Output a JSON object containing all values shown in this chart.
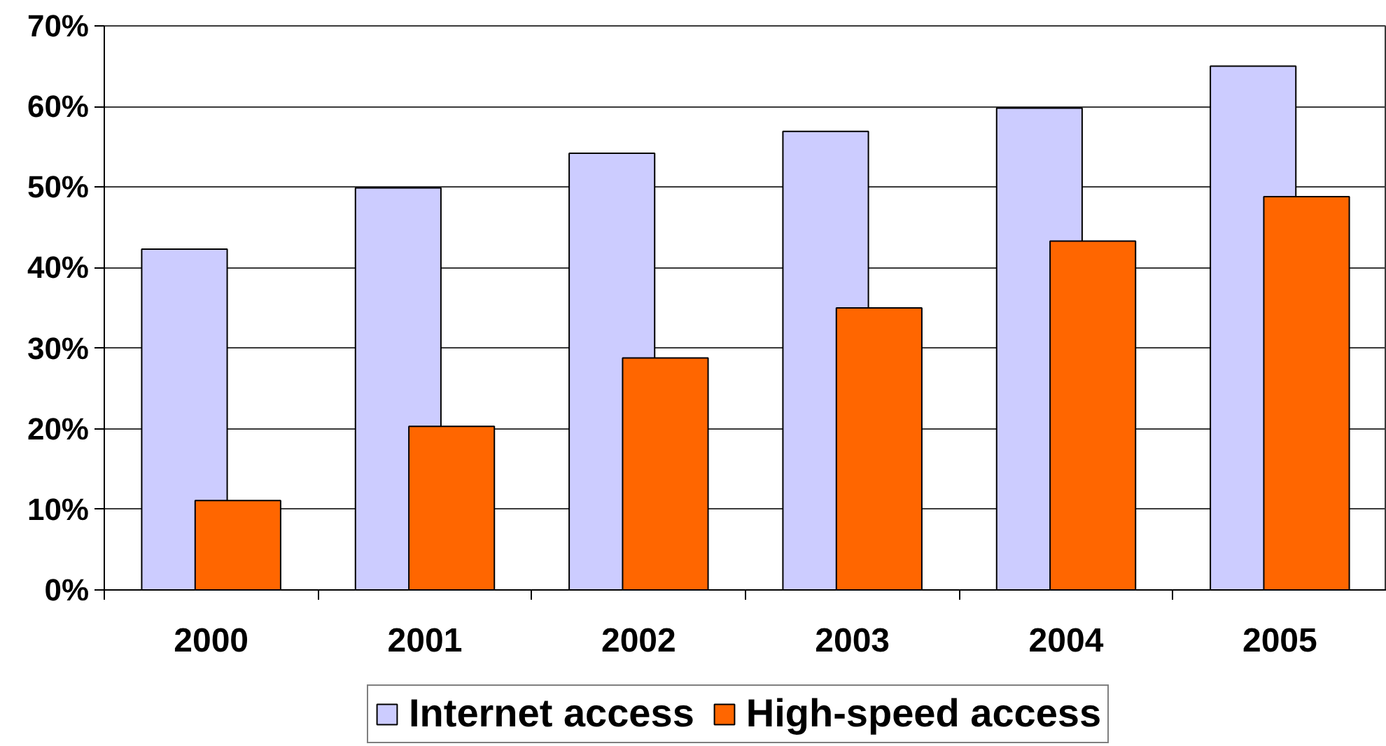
{
  "chart_data": {
    "type": "bar",
    "categories": [
      "2000",
      "2001",
      "2002",
      "2003",
      "2004",
      "2005"
    ],
    "series": [
      {
        "name": "Internet access",
        "color": "#ccccff",
        "values": [
          42.3,
          49.9,
          54.2,
          56.9,
          59.8,
          65.0
        ]
      },
      {
        "name": "High-speed access",
        "color": "#ff6600",
        "values": [
          11.1,
          20.3,
          28.8,
          35.0,
          43.3,
          48.8
        ]
      }
    ],
    "ylim": [
      0,
      70
    ],
    "yticks": [
      {
        "value": 0,
        "label": "0%"
      },
      {
        "value": 10,
        "label": "10%"
      },
      {
        "value": 20,
        "label": "20%"
      },
      {
        "value": 30,
        "label": "30%"
      },
      {
        "value": 40,
        "label": "40%"
      },
      {
        "value": 50,
        "label": "50%"
      },
      {
        "value": 60,
        "label": "60%"
      },
      {
        "value": 70,
        "label": "70%"
      }
    ],
    "grid": "y",
    "legend": "bottom"
  }
}
